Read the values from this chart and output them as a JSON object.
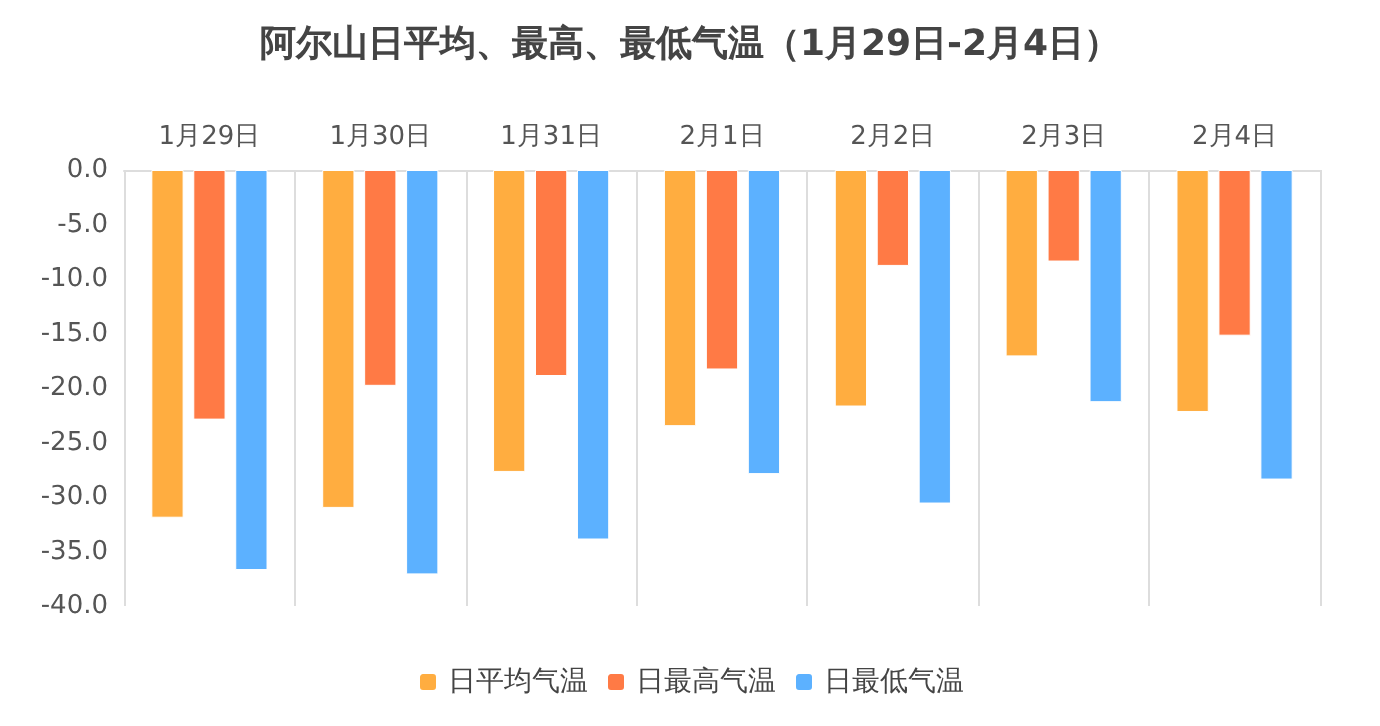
{
  "chart_data": {
    "type": "bar",
    "title": "阿尔山日平均、最高、最低气温（1月29日-2月4日）",
    "categories": [
      "1月29日",
      "1月30日",
      "1月31日",
      "2月1日",
      "2月2日",
      "2月3日",
      "2月4日"
    ],
    "series": [
      {
        "name": "日平均气温",
        "color": "#ffad40",
        "values": [
          -31.9,
          -31.0,
          -27.7,
          -23.5,
          -21.7,
          -17.1,
          -22.2
        ]
      },
      {
        "name": "日最高气温",
        "color": "#ff7a45",
        "values": [
          -22.9,
          -19.8,
          -18.9,
          -18.3,
          -8.8,
          -8.4,
          -15.2
        ]
      },
      {
        "name": "日最低气温",
        "color": "#5cb1ff",
        "values": [
          -36.7,
          -37.1,
          -33.9,
          -27.9,
          -30.6,
          -21.3,
          -28.4
        ]
      }
    ],
    "ylim": [
      -40,
      0
    ],
    "yticks": [
      {
        "value": 0,
        "label": "0.0"
      },
      {
        "value": -5,
        "label": "-5.0"
      },
      {
        "value": -10,
        "label": "-10.0"
      },
      {
        "value": -15,
        "label": "-15.0"
      },
      {
        "value": -20,
        "label": "-20.0"
      },
      {
        "value": -25,
        "label": "-25.0"
      },
      {
        "value": -30,
        "label": "-30.0"
      },
      {
        "value": -35,
        "label": "-35.0"
      },
      {
        "value": -40,
        "label": "-40.0"
      }
    ],
    "grid": "x",
    "legend": "bottom"
  }
}
